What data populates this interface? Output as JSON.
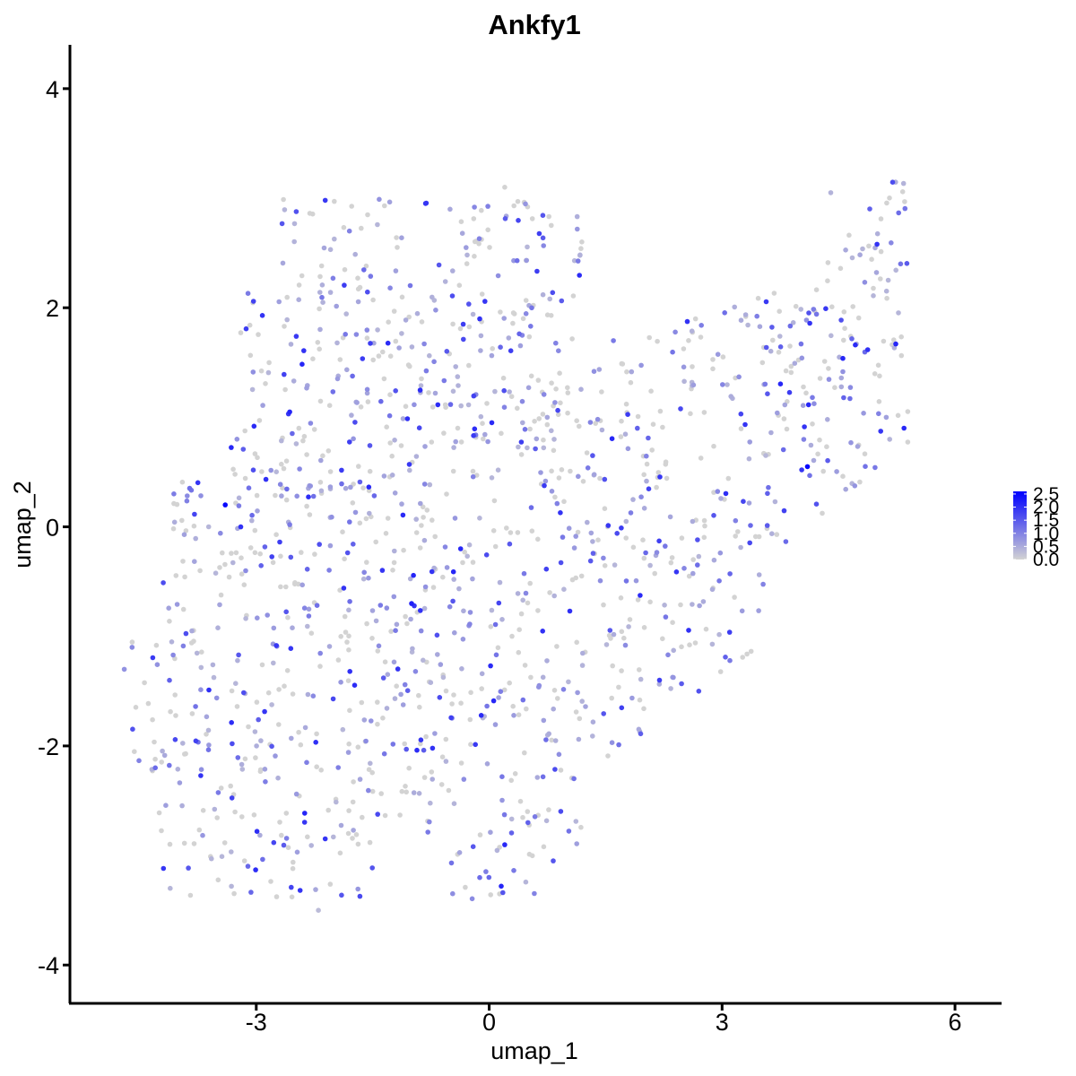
{
  "chart_data": {
    "type": "scatter",
    "title": "Ankfy1",
    "xlabel": "umap_1",
    "ylabel": "umap_2",
    "xlim": [
      -5.4,
      6.6
    ],
    "ylim": [
      -4.35,
      4.4
    ],
    "x_ticks": [
      -3,
      0,
      3,
      6
    ],
    "x_tick_labels": [
      "-3",
      "0",
      "3",
      "6"
    ],
    "y_ticks": [
      -4,
      -2,
      0,
      2,
      4
    ],
    "y_tick_labels": [
      "-4",
      "-2",
      "0",
      "2",
      "4"
    ],
    "grid": false,
    "legend": {
      "position": "right",
      "type": "colorbar",
      "min": 0,
      "max": 2.6,
      "ticks": [
        0,
        0.5,
        1,
        1.5,
        2,
        2.5
      ],
      "tick_labels": [
        "0.0",
        "0.5",
        "1.0",
        "1.5",
        "2.0",
        "2.5"
      ],
      "low_color": "#d3d3d3",
      "high_color": "#0000ff"
    },
    "point_count": 1500,
    "sample_points": [
      {
        "x": -4.7,
        "y": -1.3,
        "value": 0.8
      },
      {
        "x": -4.6,
        "y": -1.1,
        "value": 0.9
      },
      {
        "x": -3.4,
        "y": 0.2,
        "value": 2.5
      },
      {
        "x": -3.2,
        "y": 0.0,
        "value": 2.0
      },
      {
        "x": -1.0,
        "y": -0.7,
        "value": 2.2
      },
      {
        "x": 4.1,
        "y": 0.55,
        "value": 2.5
      },
      {
        "x": 0.2,
        "y": 3.1,
        "value": 0.0
      },
      {
        "x": 4.4,
        "y": 3.05,
        "value": 0.4
      },
      {
        "x": -2.2,
        "y": -3.5,
        "value": 0.3
      },
      {
        "x": 5.3,
        "y": 2.4,
        "value": 1.2
      },
      {
        "x": 0.5,
        "y": -2.7,
        "value": 1.4
      },
      {
        "x": 2.7,
        "y": -1.5,
        "value": 1.6
      },
      {
        "x": -4.3,
        "y": -2.2,
        "value": 1.3
      },
      {
        "x": 1.6,
        "y": 1.7,
        "value": 1.1
      },
      {
        "x": -1.8,
        "y": 2.7,
        "value": 1.0
      }
    ]
  }
}
